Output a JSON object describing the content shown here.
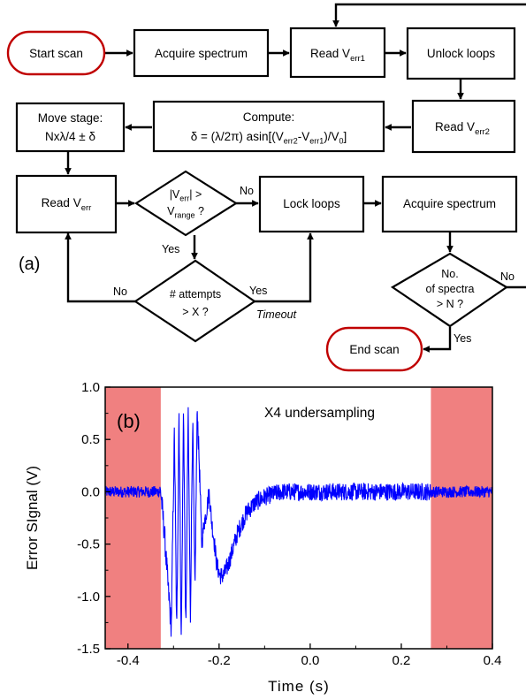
{
  "flowchart": {
    "panel_label": "(a)",
    "nodes": {
      "start": "Start scan",
      "acquire1": "Acquire spectrum",
      "read_err1": {
        "main": "Read V",
        "sub": "err1"
      },
      "unlock": "Unlock loops",
      "read_err2": {
        "main": "Read V",
        "sub": "err2"
      },
      "compute": {
        "line1": "Compute:",
        "line2_pre": "δ = (λ/2π) asin[(V",
        "sub1": "err2",
        "mid": "-V",
        "sub2": "err1",
        "mid2": ")/V",
        "sub3": "0",
        "end": "]"
      },
      "move": {
        "line1": "Move stage:",
        "line2": "Nxλ/4 ± δ"
      },
      "read_err": {
        "main": "Read V",
        "sub": "err"
      },
      "range_check": {
        "l1_pre": "|V",
        "l1_sub": "err",
        "l1_post": "| >",
        "l2_pre": "V",
        "l2_sub": "range",
        "l2_post": " ?"
      },
      "lock": "Lock loops",
      "acquire2": "Acquire spectrum",
      "attempts": {
        "line1": "# attempts",
        "line2": "> X ?"
      },
      "spectra_check": {
        "line1": "No.",
        "line2": "of spectra",
        "line3": "> N ?"
      },
      "end": "End scan"
    },
    "edge_labels": {
      "range_no": "No",
      "range_yes": "Yes",
      "attempts_no": "No",
      "attempts_yes": "Yes",
      "timeout": "Timeout",
      "spectra_no": "No",
      "spectra_yes": "Yes"
    }
  },
  "chart_data": {
    "type": "line",
    "panel_label": "(b)",
    "annotation": "X4 undersampling",
    "xlabel": "Time (s)",
    "ylabel": "Error SIgnal (V)",
    "xlim": [
      -0.45,
      0.4
    ],
    "ylim": [
      -1.5,
      1.0
    ],
    "xticks": [
      "-0.4",
      "-0.2",
      "0.0",
      "0.2",
      "0.4"
    ],
    "xtick_values": [
      -0.4,
      -0.2,
      0.0,
      0.2,
      0.4
    ],
    "yticks": [
      "1.0",
      "0.5",
      "0.0",
      "-0.5",
      "-1.0",
      "-1.5"
    ],
    "ytick_values": [
      1.0,
      0.5,
      0.0,
      -0.5,
      -1.0,
      -1.5
    ],
    "shaded_regions": [
      [
        -0.45,
        -0.328
      ],
      [
        0.265,
        0.4
      ]
    ],
    "colors": {
      "line": "#0000ff",
      "shade": "#f08080"
    },
    "series": [
      {
        "x": [
          -0.45,
          -0.4,
          -0.35,
          -0.328,
          -0.32,
          -0.312,
          -0.305,
          -0.298,
          -0.293,
          -0.288,
          -0.283,
          -0.278,
          -0.273,
          -0.268,
          -0.263,
          -0.258,
          -0.253,
          -0.248,
          -0.243,
          -0.238,
          -0.233,
          -0.228,
          -0.222,
          -0.216,
          -0.21,
          -0.205,
          -0.198,
          -0.19,
          -0.18,
          -0.17,
          -0.16,
          -0.15,
          -0.14,
          -0.13,
          -0.12,
          -0.1,
          -0.08,
          -0.06,
          -0.04,
          -0.02,
          0.0,
          0.05,
          0.1,
          0.15,
          0.2,
          0.265,
          0.3,
          0.35,
          0.4
        ],
        "y": [
          0.0,
          0.0,
          0.0,
          0.0,
          -0.4,
          -0.9,
          -1.3,
          0.6,
          -1.4,
          0.8,
          -1.45,
          0.8,
          -1.4,
          0.75,
          -1.2,
          0.7,
          -1.0,
          0.8,
          0.2,
          -0.5,
          -0.3,
          -0.2,
          0.0,
          -0.3,
          -0.5,
          -0.7,
          -0.8,
          -0.8,
          -0.7,
          -0.55,
          -0.4,
          -0.3,
          -0.2,
          -0.15,
          -0.1,
          -0.05,
          -0.02,
          0.0,
          0.0,
          0.0,
          0.0,
          0.0,
          0.0,
          0.0,
          0.0,
          0.0,
          0.0,
          0.0,
          0.0
        ]
      }
    ]
  }
}
